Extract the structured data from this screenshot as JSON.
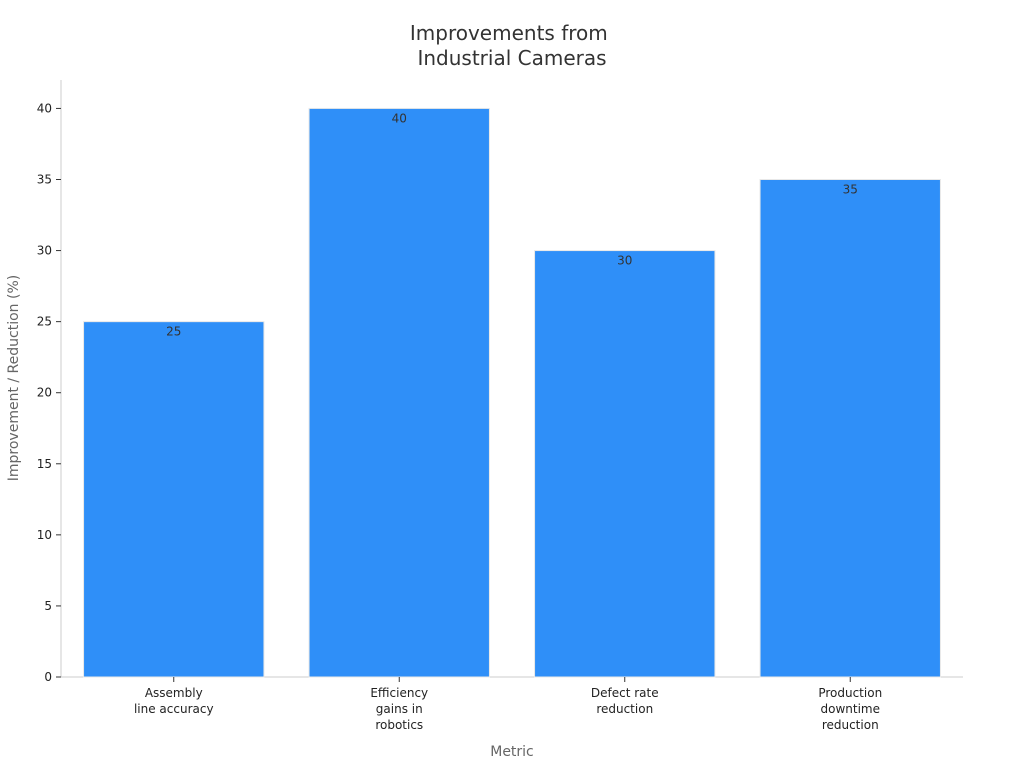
{
  "chart_data": {
    "type": "bar",
    "title_lines": [
      "Improvements from",
      "Industrial Cameras"
    ],
    "xlabel": "Metric",
    "ylabel": "Improvement / Reduction (%)",
    "categories": [
      [
        "Assembly",
        "line accuracy"
      ],
      [
        "Efficiency",
        "gains in",
        "robotics"
      ],
      [
        "Defect rate",
        "reduction"
      ],
      [
        "Production",
        "downtime",
        "reduction"
      ]
    ],
    "values": [
      25,
      40,
      30,
      35
    ],
    "ylim": [
      0,
      42
    ],
    "yticks": [
      0,
      5,
      10,
      15,
      20,
      25,
      30,
      35,
      40
    ],
    "grid": false,
    "legend": "none",
    "bar_color": "#2f8ff8"
  }
}
